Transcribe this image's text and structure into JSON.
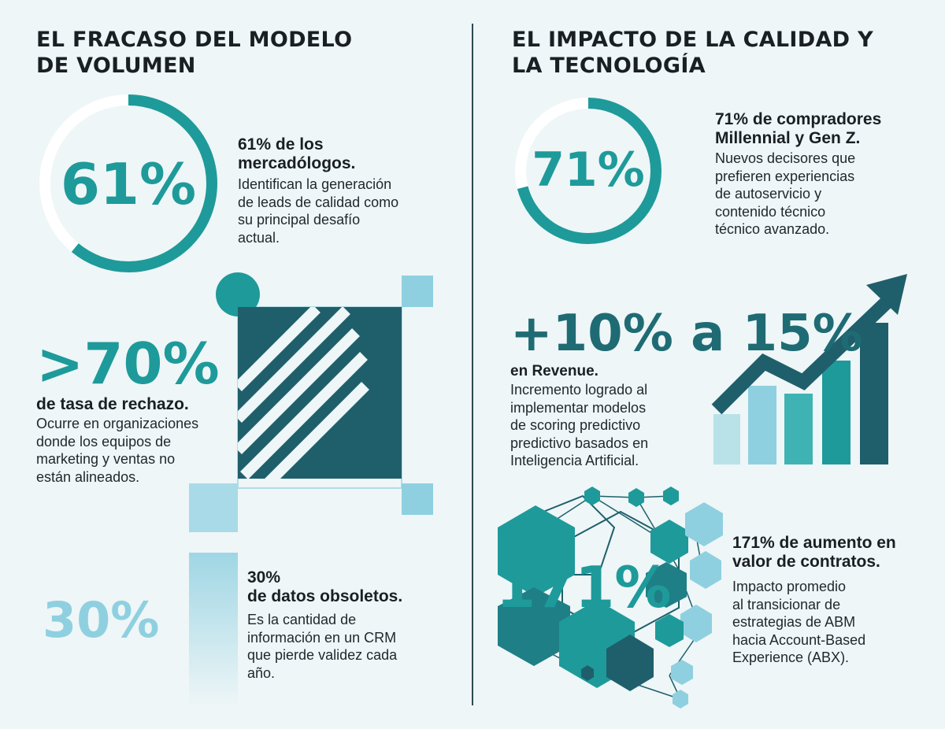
{
  "left": {
    "title_line1": "EL FRACASO DEL MODELO",
    "title_line2": "DE VOLUMEN",
    "stat1": {
      "value": "61%",
      "progress": 0.61,
      "heading_l1": "61% de los",
      "heading_l2": "mercadólogos.",
      "body": [
        "Identifican la generación",
        "de leads de calidad como",
        "su principal desafío",
        "actual."
      ]
    },
    "stat2": {
      "value": ">70%",
      "heading": "de tasa de rechazo.",
      "body": [
        "Ocurre en organizaciones",
        "donde los equipos de",
        "marketing y ventas no",
        "están alineados."
      ]
    },
    "stat3": {
      "value": "30%",
      "heading_l1": "30%",
      "heading_l2": "de datos obsoletos.",
      "body": [
        "Es la cantidad de",
        "información en un CRM",
        "que pierde validez cada",
        "año."
      ]
    }
  },
  "right": {
    "title_line1": "EL IMPACTO DE LA CALIDAD Y",
    "title_line2": "LA TECNOLOGÍA",
    "stat1": {
      "value": "71%",
      "progress": 0.71,
      "heading_l1": "71% de compradores",
      "heading_l2": "Millennial y Gen Z.",
      "body": [
        "Nuevos decisores que",
        "prefieren experiencias",
        "de autoservicio y",
        "contenido técnico",
        "técnico avanzado."
      ]
    },
    "stat2": {
      "value": "+10% a 15%",
      "heading": "en Revenue.",
      "body": [
        "Incremento logrado al",
        "implementar modelos",
        "de scoring predictivo",
        "predictivo basados en",
        "Inteligencia Artificial."
      ]
    },
    "stat3": {
      "value": "171%",
      "heading_l1": "171% de aumento en",
      "heading_l2": "valor de contratos.",
      "body": [
        "Impacto promedio",
        "al transicionar de",
        "estrategias de ABM",
        "hacia Account-Based",
        "Experience (ABX)."
      ]
    }
  },
  "colors": {
    "teal": "#1e9a9a",
    "dark_teal": "#1f5f6b",
    "light_blue": "#8fd0e0",
    "ring_track": "#ffffff",
    "background": "#eef6f7"
  }
}
